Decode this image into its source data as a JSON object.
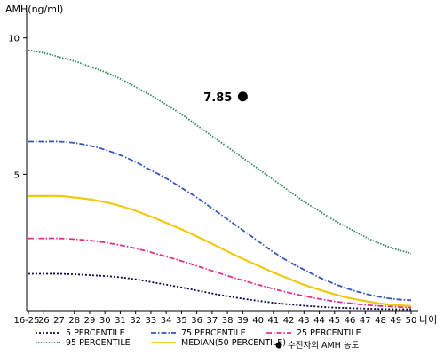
{
  "chart_data": {
    "type": "line",
    "ylabel": "AMH(ng/ml)",
    "xlabel": "나이",
    "ylim": [
      0,
      11
    ],
    "yticks": [
      10,
      5
    ],
    "categories": [
      "16-25",
      "26",
      "27",
      "28",
      "29",
      "30",
      "31",
      "32",
      "33",
      "34",
      "35",
      "36",
      "37",
      "38",
      "39",
      "40",
      "41",
      "42",
      "43",
      "44",
      "45",
      "46",
      "47",
      "48",
      "49",
      "50"
    ],
    "series": [
      {
        "name": "5 PERCENTILE",
        "color": "#0a0a4a",
        "dash": "2,2",
        "values": [
          1.35,
          1.35,
          1.35,
          1.33,
          1.3,
          1.27,
          1.22,
          1.15,
          1.05,
          0.95,
          0.85,
          0.74,
          0.63,
          0.53,
          0.44,
          0.36,
          0.29,
          0.23,
          0.18,
          0.14,
          0.11,
          0.09,
          0.07,
          0.06,
          0.05,
          0.05
        ]
      },
      {
        "name": "75 PERCENTILE",
        "color": "#3355bb",
        "dash": "6,2,1.5,2",
        "values": [
          6.2,
          6.2,
          6.2,
          6.15,
          6.05,
          5.9,
          5.7,
          5.45,
          5.15,
          4.85,
          4.5,
          4.15,
          3.75,
          3.35,
          2.95,
          2.55,
          2.15,
          1.8,
          1.5,
          1.22,
          0.98,
          0.78,
          0.62,
          0.5,
          0.42,
          0.38
        ]
      },
      {
        "name": "25 PERCENTILE",
        "color": "#e0308a",
        "dash": "6,2,1.5,2",
        "values": [
          2.65,
          2.65,
          2.65,
          2.62,
          2.57,
          2.5,
          2.4,
          2.28,
          2.14,
          1.98,
          1.82,
          1.64,
          1.46,
          1.28,
          1.11,
          0.95,
          0.8,
          0.66,
          0.54,
          0.43,
          0.34,
          0.27,
          0.21,
          0.17,
          0.14,
          0.12
        ]
      },
      {
        "name": "95 PERCENTILE",
        "color": "#2e8b57",
        "dash": "1.5,1.5",
        "values": [
          9.55,
          9.45,
          9.3,
          9.15,
          8.95,
          8.75,
          8.5,
          8.2,
          7.9,
          7.55,
          7.2,
          6.8,
          6.4,
          6.0,
          5.6,
          5.2,
          4.8,
          4.4,
          4.0,
          3.65,
          3.3,
          3.0,
          2.7,
          2.45,
          2.25,
          2.1
        ]
      },
      {
        "name": "MEDIAN(50 PERCENTILE)",
        "color": "#f2c80f",
        "dash": "",
        "values": [
          4.2,
          4.2,
          4.2,
          4.15,
          4.08,
          3.98,
          3.84,
          3.66,
          3.45,
          3.22,
          2.98,
          2.72,
          2.45,
          2.17,
          1.9,
          1.65,
          1.4,
          1.17,
          0.95,
          0.77,
          0.6,
          0.46,
          0.35,
          0.26,
          0.2,
          0.17
        ]
      }
    ],
    "marker": {
      "name": "수진자의 AMH 농도",
      "x": "39",
      "y": 7.85,
      "label": "7.85",
      "color": "#000000"
    },
    "legend": {
      "placement": "bottom"
    }
  }
}
